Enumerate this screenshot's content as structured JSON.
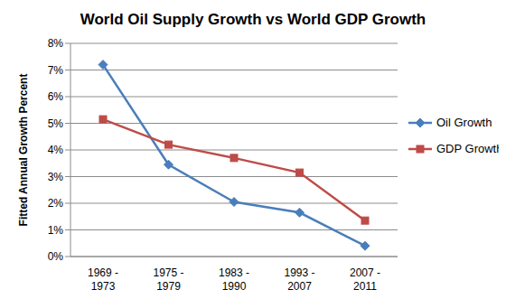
{
  "chart_data": {
    "type": "line",
    "title": "World Oil Supply Growth vs World GDP Growth",
    "y_label": "Fitted Annual Growth Percent",
    "categories": [
      "1969 - 1973",
      "1975 - 1979",
      "1983 - 1990",
      "1993 - 2007",
      "2007 - 2011"
    ],
    "series": [
      {
        "name": "Oil Growth",
        "color": "#4a7ebb",
        "marker": "diamond",
        "values": [
          7.2,
          3.45,
          2.05,
          1.65,
          0.4
        ]
      },
      {
        "name": "GDP Growth",
        "color": "#be4b48",
        "marker": "square",
        "values": [
          5.15,
          4.2,
          3.7,
          3.15,
          1.35
        ]
      }
    ],
    "ylim": [
      0,
      8
    ],
    "yticks": [
      {
        "value": 0,
        "label": "0%"
      },
      {
        "value": 1,
        "label": "1%"
      },
      {
        "value": 2,
        "label": "2%"
      },
      {
        "value": 3,
        "label": "3%"
      },
      {
        "value": 4,
        "label": "4%"
      },
      {
        "value": 5,
        "label": "5%"
      },
      {
        "value": 6,
        "label": "6%"
      },
      {
        "value": 7,
        "label": "7%"
      },
      {
        "value": 8,
        "label": "8%"
      }
    ],
    "grid": true,
    "legend": "right"
  }
}
